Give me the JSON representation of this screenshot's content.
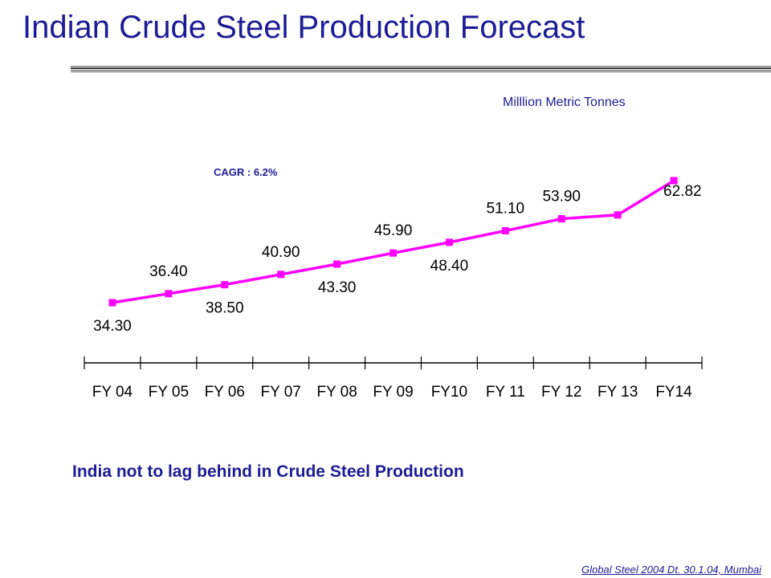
{
  "title": "Indian Crude Steel Production Forecast",
  "units_label": "Milllion Metric Tonnes",
  "cagr_label": "CAGR : 6.2%",
  "message": "India not to lag behind in Crude Steel Production",
  "footer": "Global Steel 2004 Dt. 30.1.04, Mumbai",
  "colors": {
    "line": "#ff00ff",
    "text": "#1c1c96",
    "axis": "#000000"
  },
  "chart_data": {
    "type": "line",
    "categories": [
      "FY04",
      "FY05",
      "FY06",
      "FY07",
      "FY08",
      "FY09",
      "FY10",
      "FY11",
      "FY12",
      "FY13",
      "FY14"
    ],
    "category_display": [
      "FY 04",
      "FY 05",
      "FY 06",
      "FY 07",
      "FY 08",
      "FY 09",
      "FY10",
      "FY 11",
      "FY 12",
      "FY 13",
      "FY14"
    ],
    "values": [
      34.3,
      36.4,
      38.5,
      40.9,
      43.3,
      45.9,
      48.4,
      51.1,
      53.9,
      54.8,
      62.82
    ],
    "data_labels": [
      "34.30",
      "36.40",
      "38.50",
      "40.90",
      "43.30",
      "45.90",
      "48.40",
      "51.10",
      "53.90",
      "",
      "62.82"
    ],
    "label_side": [
      "below",
      "above",
      "below",
      "above",
      "below",
      "above",
      "below",
      "above",
      "above",
      "",
      "right"
    ],
    "xlabel": "",
    "ylabel": "",
    "grid": false
  }
}
